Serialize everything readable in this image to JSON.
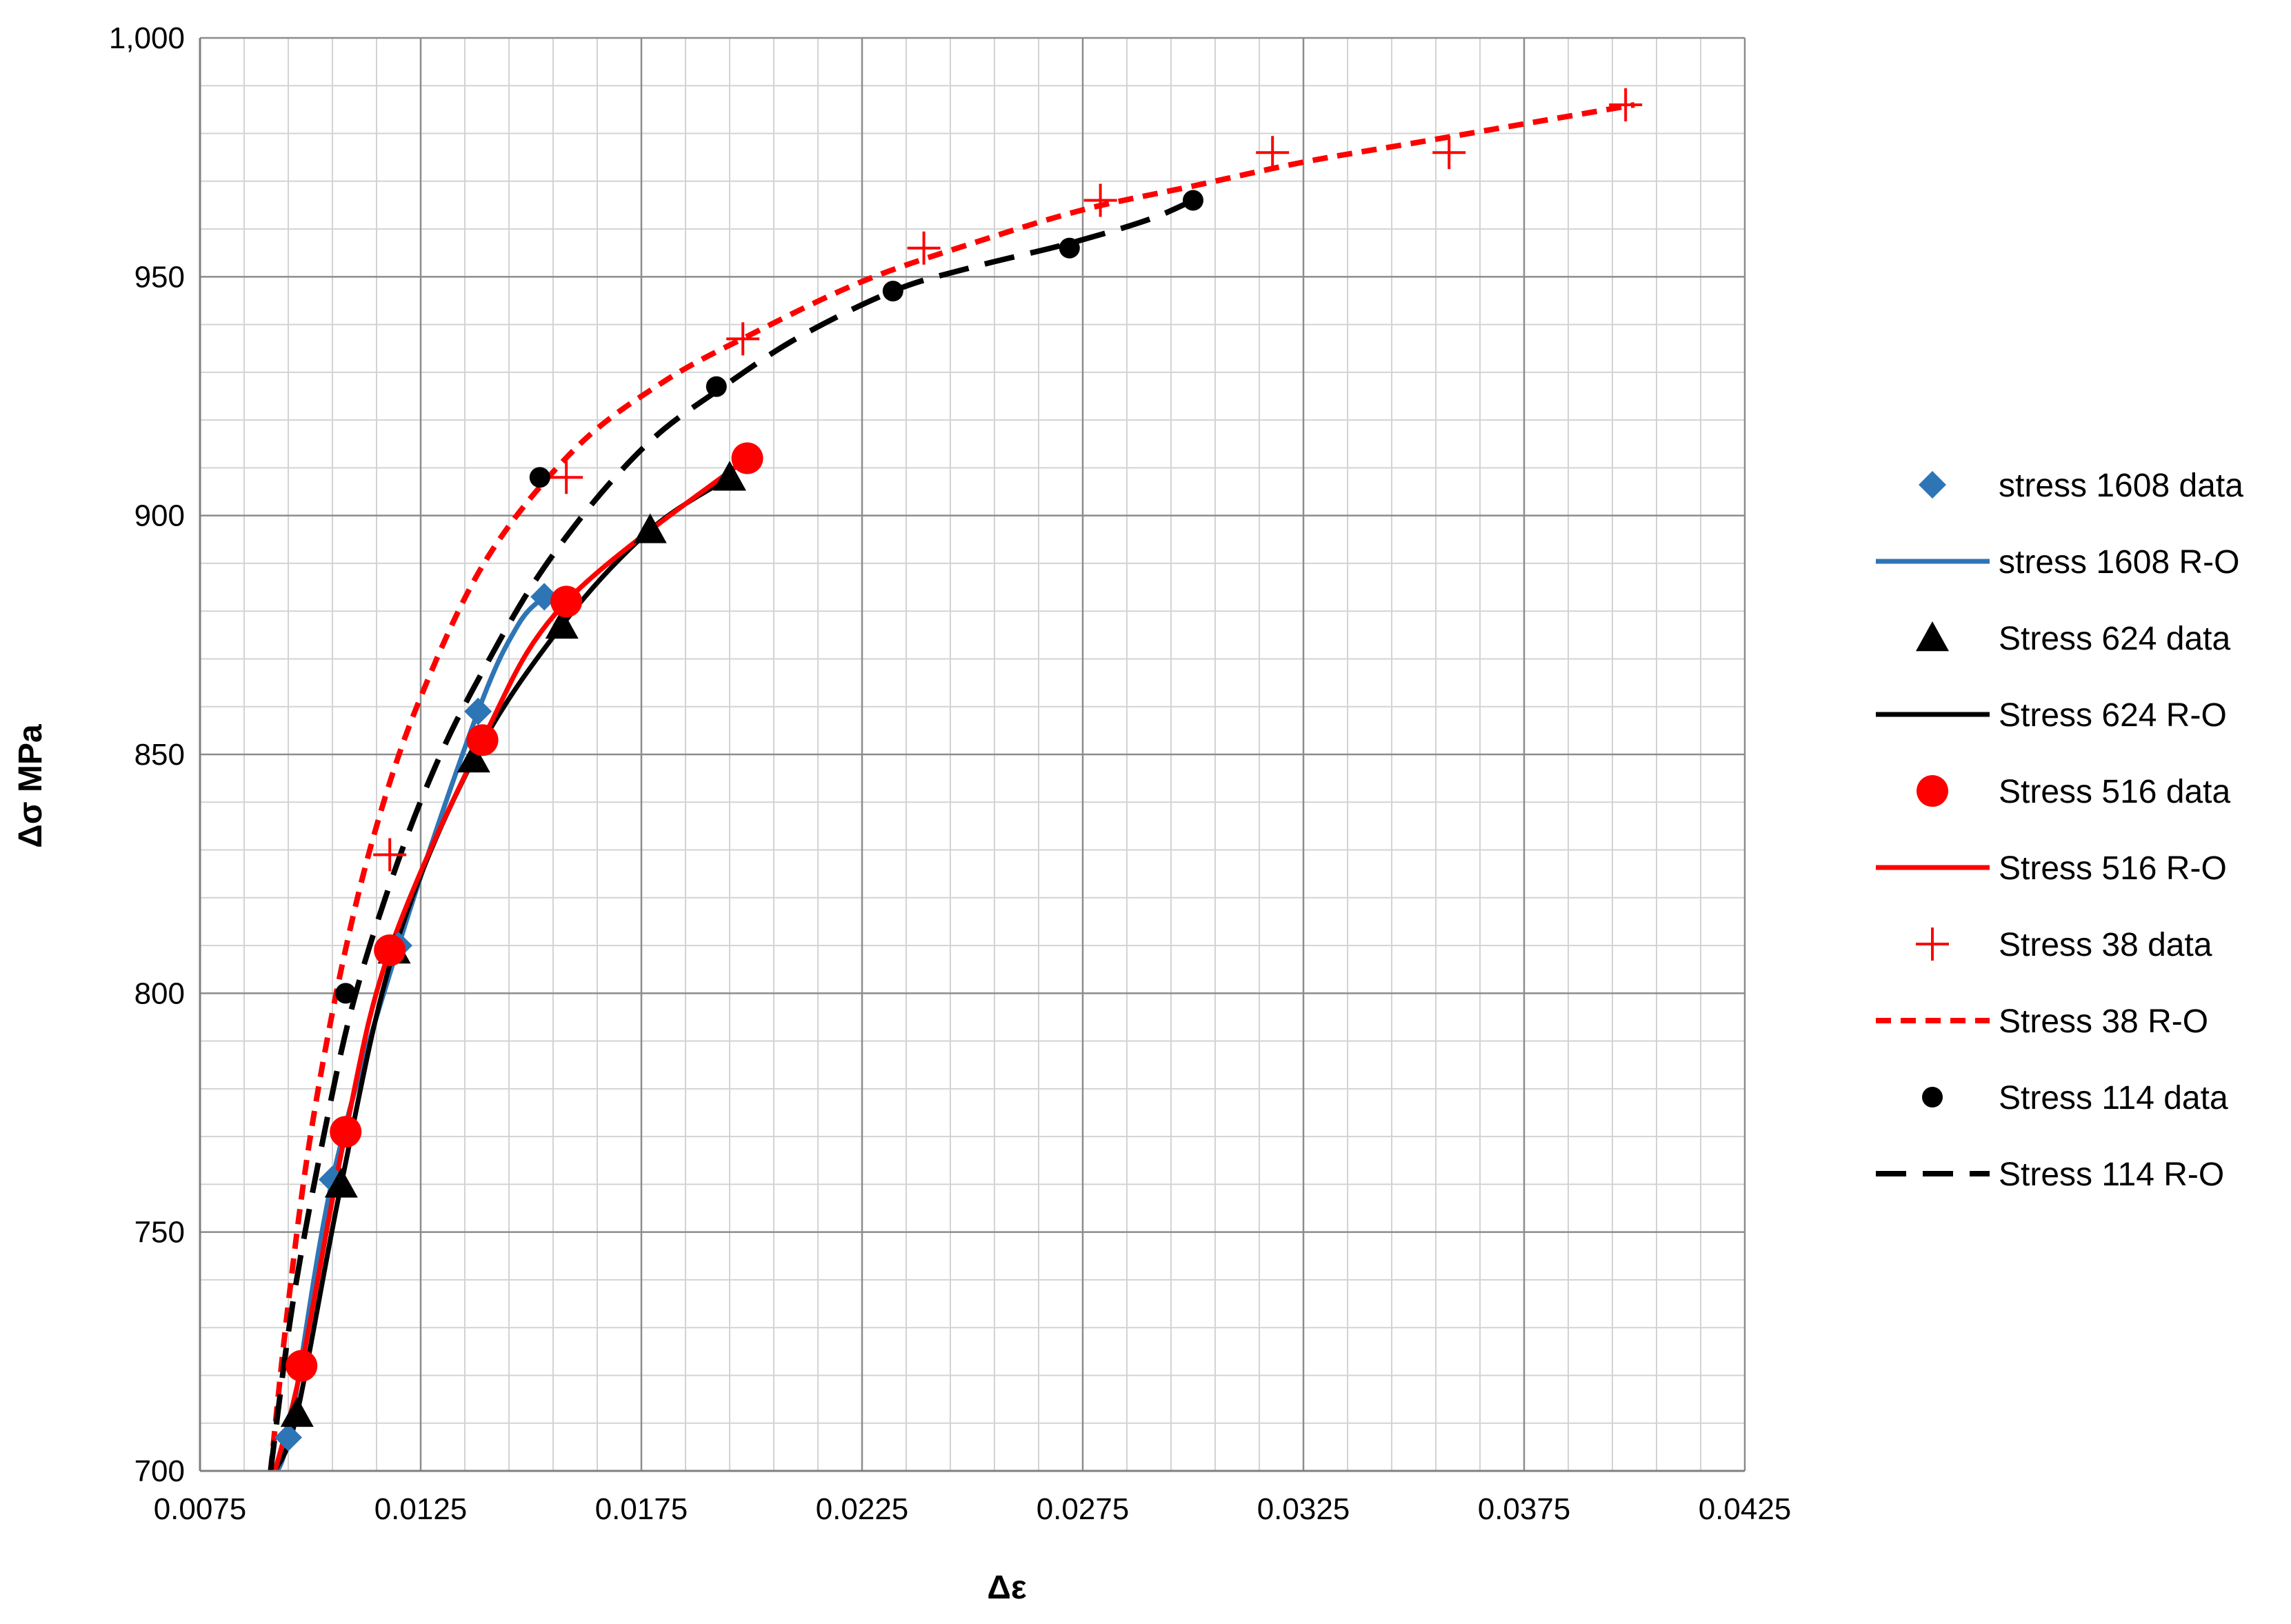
{
  "chart_data": {
    "type": "scatter",
    "title": "",
    "xlabel": "Δε",
    "ylabel": "Δσ MPa",
    "xlim": [
      0.0075,
      0.0425
    ],
    "ylim": [
      700,
      1000
    ],
    "x_ticks": [
      0.0075,
      0.0125,
      0.0175,
      0.0225,
      0.0275,
      0.0325,
      0.0375,
      0.0425
    ],
    "x_tick_labels": [
      "0.0075",
      "0.0125",
      "0.0175",
      "0.0225",
      "0.0275",
      "0.0325",
      "0.0375",
      "0.0425"
    ],
    "y_ticks": [
      700,
      750,
      800,
      850,
      900,
      950,
      1000
    ],
    "y_tick_labels": [
      "700",
      "750",
      "800",
      "850",
      "900",
      "950",
      "1,000"
    ],
    "grid": true,
    "legend_position": "right",
    "series": [
      {
        "name": "stress 1608 data",
        "kind": "markers",
        "marker": "diamond",
        "color": "#2E75B6",
        "x": [
          0.0095,
          0.0105,
          0.012,
          0.0138,
          0.0153
        ],
        "y": [
          707,
          761,
          810,
          859,
          883
        ]
      },
      {
        "name": "stress 1608 R-O",
        "kind": "line",
        "dash": "solid",
        "color": "#2E75B6",
        "x": [
          0.0091,
          0.0095,
          0.0105,
          0.012,
          0.0138,
          0.0147,
          0.0153
        ],
        "y": [
          700,
          707,
          761,
          810,
          859,
          877,
          883
        ]
      },
      {
        "name": "Stress 624 data",
        "kind": "markers",
        "marker": "triangle",
        "color": "#000000",
        "x": [
          0.0097,
          0.0107,
          0.0119,
          0.0137,
          0.0157,
          0.0177,
          0.0195
        ],
        "y": [
          712,
          760,
          809,
          849,
          877,
          897,
          908
        ]
      },
      {
        "name": "Stress 624 R-O",
        "kind": "line",
        "dash": "solid",
        "color": "#000000",
        "x": [
          0.0092,
          0.0097,
          0.0107,
          0.0119,
          0.0137,
          0.0157,
          0.0177,
          0.0195
        ],
        "y": [
          700,
          712,
          760,
          809,
          849,
          877,
          897,
          908
        ]
      },
      {
        "name": "Stress 516 data",
        "kind": "markers",
        "marker": "circle",
        "color": "#FF0000",
        "x": [
          0.0098,
          0.0108,
          0.0118,
          0.0139,
          0.0158,
          0.0199
        ],
        "y": [
          722,
          771,
          809,
          853,
          882,
          912
        ]
      },
      {
        "name": "Stress 516 R-O",
        "kind": "line",
        "dash": "solid",
        "color": "#FF0000",
        "x": [
          0.0092,
          0.0098,
          0.0108,
          0.0118,
          0.0139,
          0.0158,
          0.0199
        ],
        "y": [
          700,
          722,
          771,
          809,
          853,
          882,
          912
        ]
      },
      {
        "name": "Stress 38 data",
        "kind": "markers",
        "marker": "plus",
        "color": "#FF0000",
        "x": [
          0.0118,
          0.0158,
          0.0198,
          0.0239,
          0.0279,
          0.0318,
          0.0358,
          0.0398
        ],
        "y": [
          829,
          908,
          937,
          956,
          966,
          976,
          976,
          986
        ]
      },
      {
        "name": "Stress 38 R-O",
        "kind": "line",
        "dash": "short",
        "color": "#FF0000",
        "x": [
          0.0091,
          0.0095,
          0.01,
          0.0107,
          0.0115,
          0.0125,
          0.014,
          0.016,
          0.018,
          0.02,
          0.0225,
          0.025,
          0.0275,
          0.03,
          0.0325,
          0.035,
          0.0375,
          0.04
        ],
        "y": [
          700,
          735,
          770,
          805,
          835,
          862,
          891,
          914,
          928,
          938,
          949,
          957,
          964,
          969,
          974,
          978,
          982,
          986
        ]
      },
      {
        "name": "Stress 114 data",
        "kind": "markers",
        "marker": "circle-small",
        "color": "#000000",
        "x": [
          0.0108,
          0.0152,
          0.0192,
          0.0232,
          0.0272,
          0.03
        ],
        "y": [
          800,
          908,
          927,
          947,
          956,
          966
        ]
      },
      {
        "name": "Stress 114 R-O",
        "kind": "line",
        "dash": "long",
        "color": "#000000",
        "x": [
          0.0091,
          0.0096,
          0.0103,
          0.011,
          0.012,
          0.013,
          0.014,
          0.015,
          0.016,
          0.017,
          0.018,
          0.0192,
          0.021,
          0.0232,
          0.025,
          0.0272,
          0.029,
          0.03
        ],
        "y": [
          700,
          735,
          770,
          799,
          828,
          851,
          869,
          885,
          898,
          909,
          918,
          926,
          937,
          947,
          952,
          957,
          962,
          966
        ]
      }
    ]
  }
}
